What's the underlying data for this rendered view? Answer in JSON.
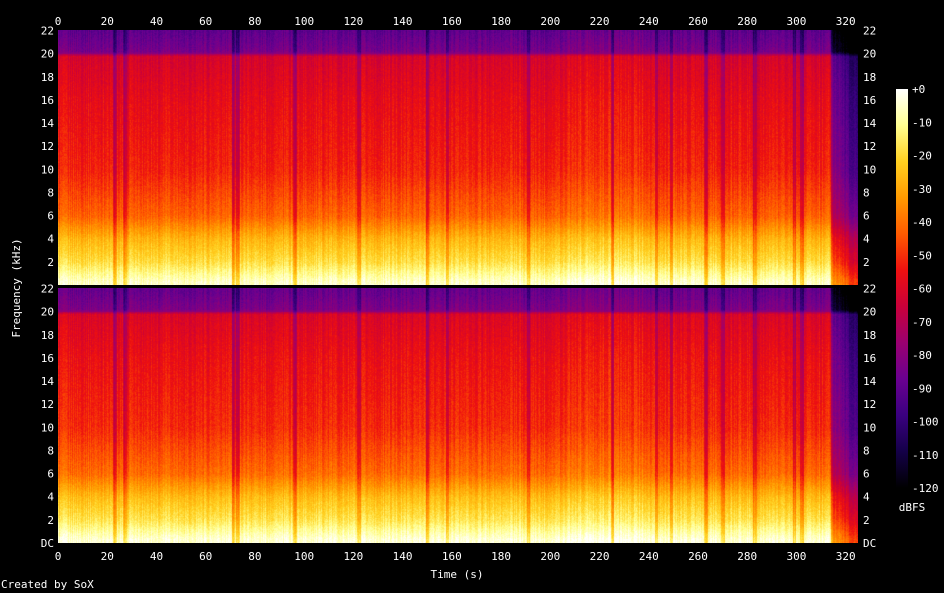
{
  "credit": "Created by SoX",
  "chart_data": {
    "type": "heatmap",
    "title": "",
    "xlabel": "Time (s)",
    "ylabel": "Frequency (kHz)",
    "colorbar_label": "dBFS",
    "xlim": [
      0,
      325
    ],
    "ylim": [
      0,
      22.05
    ],
    "x_ticks": [
      0,
      20,
      40,
      60,
      80,
      100,
      120,
      140,
      160,
      180,
      200,
      220,
      240,
      260,
      280,
      300,
      320
    ],
    "y_ticks": [
      {
        "v": 0,
        "label": "DC"
      },
      {
        "v": 2,
        "label": "2"
      },
      {
        "v": 4,
        "label": "4"
      },
      {
        "v": 6,
        "label": "6"
      },
      {
        "v": 8,
        "label": "8"
      },
      {
        "v": 10,
        "label": "10"
      },
      {
        "v": 12,
        "label": "12"
      },
      {
        "v": 14,
        "label": "14"
      },
      {
        "v": 16,
        "label": "16"
      },
      {
        "v": 18,
        "label": "18"
      },
      {
        "v": 20,
        "label": "20"
      },
      {
        "v": 22,
        "label": "22"
      }
    ],
    "upper_ticks": [
      {
        "v": 2,
        "label": "2"
      },
      {
        "v": 4,
        "label": "4"
      },
      {
        "v": 6,
        "label": "6"
      },
      {
        "v": 8,
        "label": "8"
      },
      {
        "v": 10,
        "label": "10"
      },
      {
        "v": 12,
        "label": "12"
      },
      {
        "v": 14,
        "label": "14"
      },
      {
        "v": 16,
        "label": "16"
      },
      {
        "v": 18,
        "label": "18"
      },
      {
        "v": 20,
        "label": "20"
      },
      {
        "v": 22,
        "label": "22"
      }
    ],
    "colorbar_ticks": [
      {
        "v": 0,
        "label": "+0"
      },
      {
        "v": -10,
        "label": "-10"
      },
      {
        "v": -20,
        "label": "-20"
      },
      {
        "v": -30,
        "label": "-30"
      },
      {
        "v": -40,
        "label": "-40"
      },
      {
        "v": -50,
        "label": "-50"
      },
      {
        "v": -60,
        "label": "-60"
      },
      {
        "v": -70,
        "label": "-70"
      },
      {
        "v": -80,
        "label": "-80"
      },
      {
        "v": -90,
        "label": "-90"
      },
      {
        "v": -100,
        "label": "-100"
      },
      {
        "v": -110,
        "label": "-110"
      },
      {
        "v": -120,
        "label": "-120"
      }
    ],
    "colormap": [
      "#000000",
      "#140048",
      "#3a0080",
      "#6a0090",
      "#9a0070",
      "#c8003a",
      "#ee1010",
      "#ff5a00",
      "#ff9a00",
      "#ffd020",
      "#ffff90",
      "#ffffff"
    ],
    "channels": 2,
    "rolloff_khz": 20,
    "level_profile_dbfs": [
      {
        "f": 0.3,
        "db": -5
      },
      {
        "f": 2,
        "db": -18
      },
      {
        "f": 4,
        "db": -27
      },
      {
        "f": 6,
        "db": -42
      },
      {
        "f": 10,
        "db": -52
      },
      {
        "f": 16,
        "db": -57
      },
      {
        "f": 19.8,
        "db": -62
      },
      {
        "f": 20.2,
        "db": -84
      },
      {
        "f": 22,
        "db": -90
      }
    ],
    "dark_streak_times_s": [
      23,
      27,
      71,
      73,
      96,
      122,
      150,
      158,
      191,
      225,
      243,
      249,
      263,
      270,
      283,
      299,
      302
    ],
    "loud_segment_s": [
      206,
      240
    ],
    "fade_out_s": [
      314,
      325
    ]
  }
}
